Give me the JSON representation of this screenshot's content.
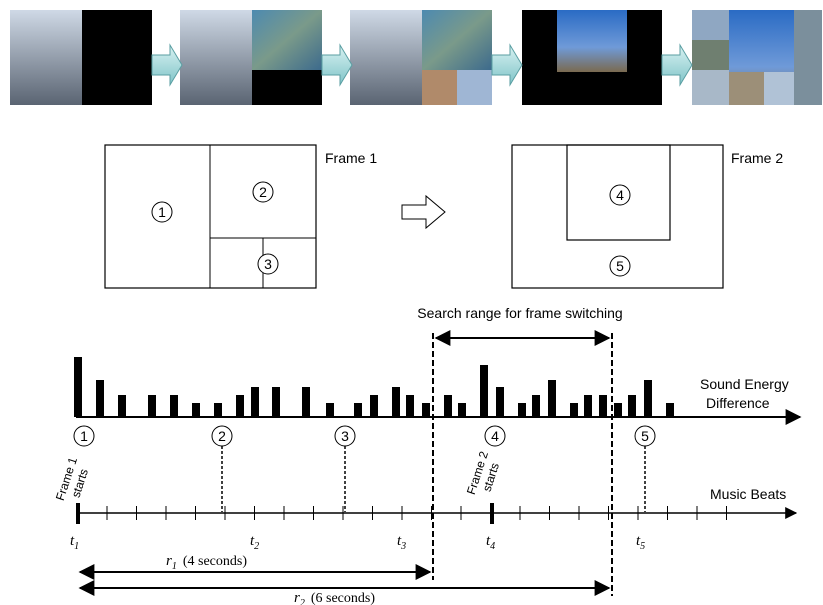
{
  "frames": [
    {
      "label": "Frame 1",
      "regions": [
        "1",
        "2",
        "3"
      ]
    },
    {
      "label": "Frame 2",
      "regions": [
        "4",
        "5"
      ]
    }
  ],
  "timeline": {
    "search_range": "Search range for frame switching",
    "energy_label": [
      "Sound Energy",
      "Difference"
    ],
    "markers": [
      "1",
      "2",
      "3",
      "4",
      "5"
    ],
    "frame_starts": [
      [
        "Frame 1",
        "starts"
      ],
      [
        "Frame 2",
        "starts"
      ]
    ],
    "beats_label": "Music Beats",
    "times": [
      {
        "base": "t",
        "sub": "1"
      },
      {
        "base": "t",
        "sub": "2"
      },
      {
        "base": "t",
        "sub": "3"
      },
      {
        "base": "t",
        "sub": "4"
      },
      {
        "base": "t",
        "sub": "5"
      }
    ],
    "ranges": [
      {
        "base": "r",
        "sub": "1",
        "note": "(4 seconds)"
      },
      {
        "base": "r",
        "sub": "2",
        "note": "(6 seconds)"
      }
    ]
  }
}
